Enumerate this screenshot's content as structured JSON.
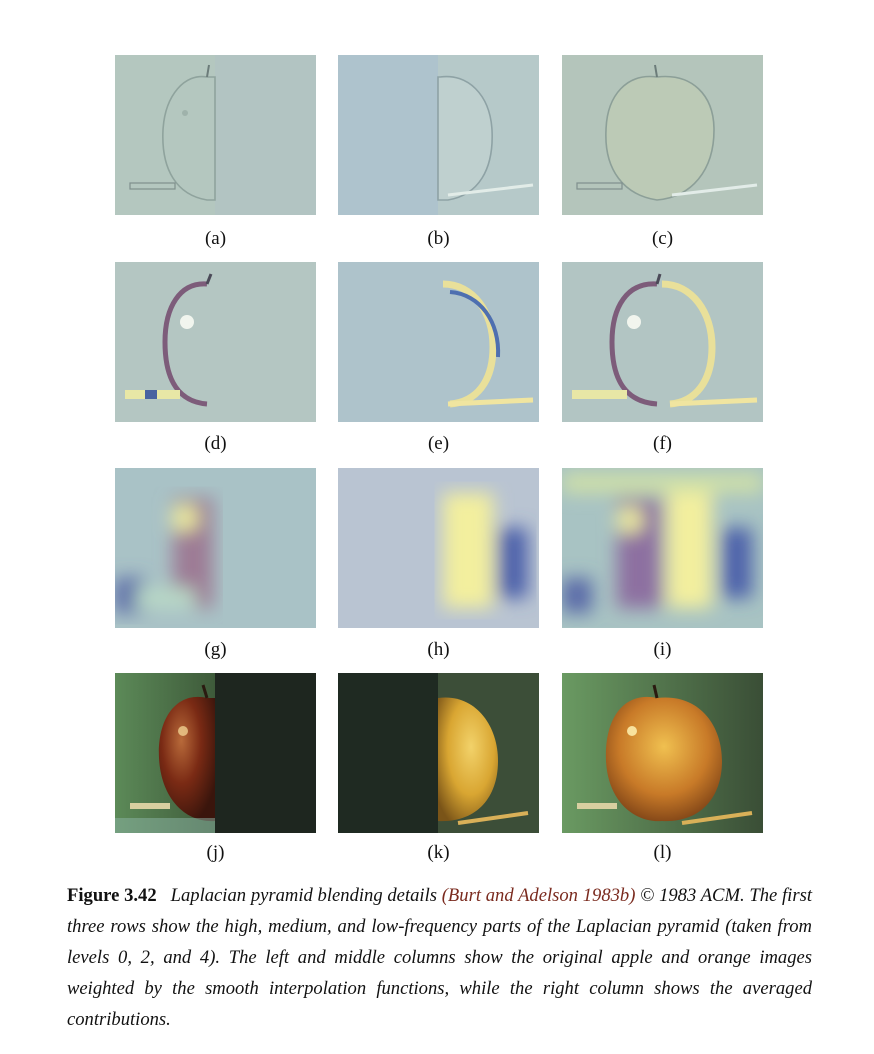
{
  "figure": {
    "panels": [
      {
        "letter": "(a)"
      },
      {
        "letter": "(b)"
      },
      {
        "letter": "(c)"
      },
      {
        "letter": "(d)"
      },
      {
        "letter": "(e)"
      },
      {
        "letter": "(f)"
      },
      {
        "letter": "(g)"
      },
      {
        "letter": "(h)"
      },
      {
        "letter": "(i)"
      },
      {
        "letter": "(j)"
      },
      {
        "letter": "(k)"
      },
      {
        "letter": "(l)"
      }
    ]
  },
  "caption": {
    "label": "Figure 3.42",
    "text_before_cite": "Laplacian pyramid blending details ",
    "citation": "(Burt and Adelson 1983b)",
    "text_after_cite": " © 1983 ACM. The first three rows show the high, medium, and low-frequency parts of the Laplacian pyramid (taken from levels 0, 2, and 4). The left and middle columns show the original apple and orange images weighted by the smooth interpolation functions, while the right column shows the averaged contributions."
  }
}
